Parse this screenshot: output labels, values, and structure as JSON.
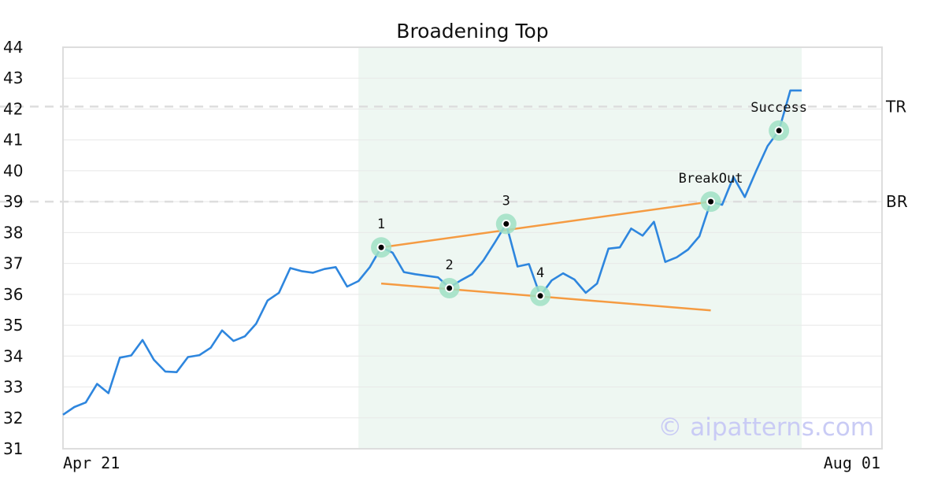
{
  "chart_data": {
    "type": "line",
    "title": "Broadening Top",
    "ylim": [
      31,
      44
    ],
    "y_ticks": [
      "31",
      "32",
      "33",
      "34",
      "35",
      "36",
      "37",
      "38",
      "39",
      "40",
      "41",
      "42",
      "43",
      "44"
    ],
    "x_tick_labels": [
      "Apr 21",
      "Aug 01"
    ],
    "grid": true,
    "series": [
      {
        "color": "#2e86de",
        "values": [
          32.1,
          32.35,
          32.5,
          33.1,
          32.8,
          33.95,
          34.02,
          34.52,
          33.88,
          33.5,
          33.48,
          33.97,
          34.03,
          34.27,
          34.83,
          34.49,
          34.64,
          35.05,
          35.8,
          36.05,
          36.85,
          36.75,
          36.7,
          36.82,
          36.88,
          36.25,
          36.43,
          36.88,
          37.52,
          37.35,
          36.72,
          36.65,
          36.6,
          36.55,
          36.22,
          36.45,
          36.65,
          37.1,
          37.68,
          38.28,
          36.9,
          36.98,
          35.95,
          36.45,
          36.68,
          36.48,
          36.05,
          36.35,
          37.48,
          37.52,
          38.13,
          37.9,
          38.35,
          37.05,
          37.2,
          37.45,
          37.88,
          39.0,
          38.9,
          39.8,
          39.15,
          40.0,
          40.8,
          41.3,
          42.6,
          42.6
        ]
      }
    ],
    "trendlines": [
      {
        "color": "#f59b42",
        "x": [
          28,
          57
        ],
        "y": [
          37.52,
          39.0
        ]
      },
      {
        "color": "#f59b42",
        "x": [
          28,
          57
        ],
        "y": [
          36.35,
          35.48
        ]
      }
    ],
    "horizontal_lines": [
      {
        "label": "TR",
        "y": 42.08,
        "color": "#dddddd",
        "style": "dashed"
      },
      {
        "label": "BR",
        "y": 39.0,
        "color": "#dddddd",
        "style": "dashed"
      }
    ],
    "highlight_region": {
      "x_start": 26,
      "x_end": 65,
      "color": "#eef7f2"
    },
    "annotations": [
      {
        "label": "1",
        "x": 28,
        "y": 37.52
      },
      {
        "label": "2",
        "x": 34,
        "y": 36.2
      },
      {
        "label": "3",
        "x": 39,
        "y": 38.28
      },
      {
        "label": "4",
        "x": 42,
        "y": 35.95
      },
      {
        "label": "BreakOut",
        "x": 57,
        "y": 39.0
      },
      {
        "label": "Success",
        "x": 63,
        "y": 41.3
      }
    ],
    "marker_color": "#9fe0c4",
    "watermark": "© aipatterns.com",
    "watermark_color": "#c9cbf5"
  }
}
